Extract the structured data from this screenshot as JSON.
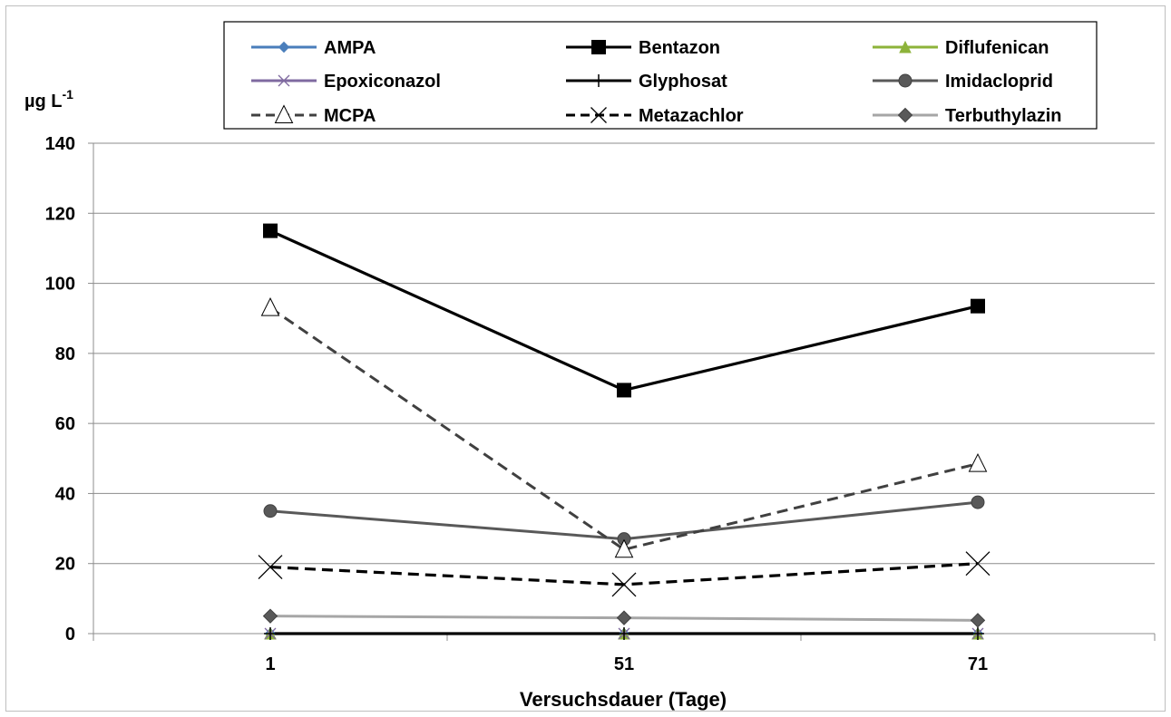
{
  "chart_data": {
    "type": "line",
    "xlabel": "Versuchsdauer (Tage)",
    "ylabel_unit": "µg L",
    "ylabel_unit_exponent": "-1",
    "categories": [
      "1",
      "51",
      "71"
    ],
    "ylim": [
      0,
      140
    ],
    "yticks": [
      0,
      20,
      40,
      60,
      80,
      100,
      120,
      140
    ],
    "grid": true,
    "legend_position": "top",
    "series": [
      {
        "name": "AMPA",
        "values": [
          0,
          0,
          0
        ],
        "color": "#4a7ebb",
        "marker": "diamond",
        "dash": false
      },
      {
        "name": "Bentazon",
        "values": [
          115,
          69.5,
          93.5
        ],
        "color": "#000000",
        "marker": "square",
        "dash": false
      },
      {
        "name": "Diflufenican",
        "values": [
          0,
          0,
          0
        ],
        "color": "#8db33a",
        "marker": "triangle-filled",
        "dash": false
      },
      {
        "name": "Epoxiconazol",
        "values": [
          0,
          0,
          0
        ],
        "color": "#7f6aa0",
        "marker": "x",
        "dash": false
      },
      {
        "name": "Glyphosat",
        "values": [
          0,
          0,
          0
        ],
        "color": "#000000",
        "marker": "plus",
        "dash": false
      },
      {
        "name": "Imidacloprid",
        "values": [
          35,
          27,
          37.5
        ],
        "color": "#595959",
        "marker": "circle",
        "dash": false
      },
      {
        "name": "MCPA",
        "values": [
          93,
          24,
          48.5
        ],
        "color": "#404040",
        "marker": "triangle-open",
        "dash": true
      },
      {
        "name": "Metazachlor",
        "values": [
          19,
          14,
          20
        ],
        "color": "#000000",
        "marker": "x-big",
        "dash": true
      },
      {
        "name": "Terbuthylazin",
        "values": [
          5,
          4.5,
          3.8
        ],
        "color": "#a6a6a6",
        "marker": "diamond-dark",
        "dash": false
      }
    ]
  }
}
